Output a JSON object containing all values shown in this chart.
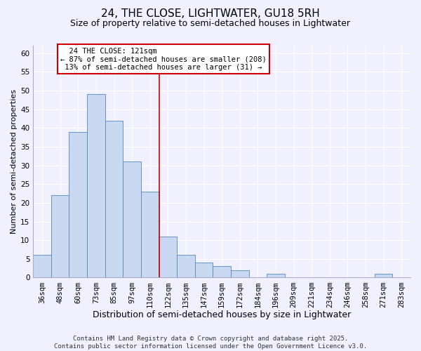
{
  "title": "24, THE CLOSE, LIGHTWATER, GU18 5RH",
  "subtitle": "Size of property relative to semi-detached houses in Lightwater",
  "xlabel": "Distribution of semi-detached houses by size in Lightwater",
  "ylabel": "Number of semi-detached properties",
  "bin_labels": [
    "36sqm",
    "48sqm",
    "60sqm",
    "73sqm",
    "85sqm",
    "97sqm",
    "110sqm",
    "122sqm",
    "135sqm",
    "147sqm",
    "159sqm",
    "172sqm",
    "184sqm",
    "196sqm",
    "209sqm",
    "221sqm",
    "234sqm",
    "246sqm",
    "258sqm",
    "271sqm",
    "283sqm"
  ],
  "bin_values": [
    6,
    22,
    39,
    49,
    42,
    31,
    23,
    11,
    6,
    4,
    3,
    2,
    0,
    1,
    0,
    0,
    0,
    0,
    0,
    1,
    0
  ],
  "bar_color": "#c8d8f0",
  "bar_edge_color": "#5588bb",
  "vline_color": "#cc0000",
  "ylim": [
    0,
    62
  ],
  "yticks": [
    0,
    5,
    10,
    15,
    20,
    25,
    30,
    35,
    40,
    45,
    50,
    55,
    60
  ],
  "annotation_title": "24 THE CLOSE: 121sqm",
  "annotation_line1": "← 87% of semi-detached houses are smaller (208)",
  "annotation_line2": "13% of semi-detached houses are larger (31) →",
  "annotation_box_color": "#ffffff",
  "annotation_box_edge": "#cc0000",
  "footer_line1": "Contains HM Land Registry data © Crown copyright and database right 2025.",
  "footer_line2": "Contains public sector information licensed under the Open Government Licence v3.0.",
  "background_color": "#f0f0ff",
  "grid_color": "#ffffff",
  "title_fontsize": 11,
  "subtitle_fontsize": 9,
  "xlabel_fontsize": 9,
  "ylabel_fontsize": 8,
  "tick_fontsize": 7.5,
  "footer_fontsize": 6.5,
  "vline_bin_index": 7
}
